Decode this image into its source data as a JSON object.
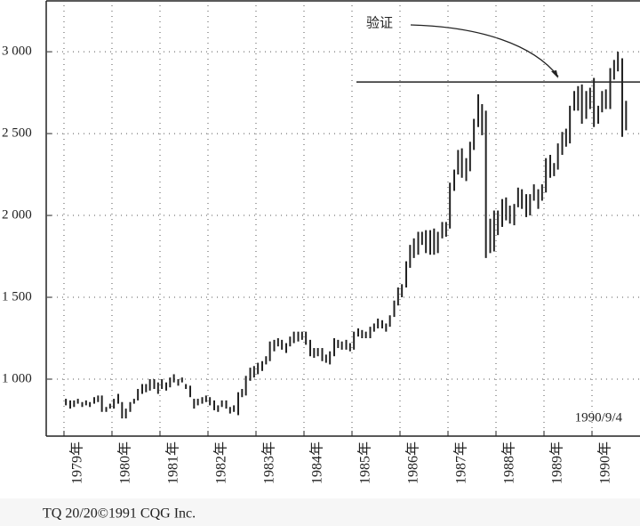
{
  "chart_data": {
    "type": "range-bar",
    "annotation": "验证",
    "date_label": "1990/9/4",
    "source": "TQ 20/20©1991 CQG Inc.",
    "reference_line": 2815,
    "color": "#222222",
    "grid": true,
    "xlim": [
      1978.63,
      1991.0
    ],
    "ylim": [
      652,
      3316
    ],
    "xticks": [
      {
        "value": 1979,
        "label": "1979年"
      },
      {
        "value": 1980,
        "label": "1980年"
      },
      {
        "value": 1981,
        "label": "1981年"
      },
      {
        "value": 1982,
        "label": "1982年"
      },
      {
        "value": 1983,
        "label": "1983年"
      },
      {
        "value": 1984,
        "label": "1984年"
      },
      {
        "value": 1985,
        "label": "1985年"
      },
      {
        "value": 1986,
        "label": "1986年"
      },
      {
        "value": 1987,
        "label": "1987年"
      },
      {
        "value": 1988,
        "label": "1988年"
      },
      {
        "value": 1989,
        "label": "1989年"
      },
      {
        "value": 1990,
        "label": "1990年"
      }
    ],
    "yticks": [
      {
        "value": 1000,
        "label": "1 000"
      },
      {
        "value": 1500,
        "label": "1 500"
      },
      {
        "value": 2000,
        "label": "2 000"
      },
      {
        "value": 2500,
        "label": "2 500"
      },
      {
        "value": 3000,
        "label": "3 000"
      }
    ],
    "x": [
      1979.04,
      1979.13,
      1979.21,
      1979.29,
      1979.38,
      1979.46,
      1979.54,
      1979.63,
      1979.71,
      1979.79,
      1979.88,
      1979.96,
      1980.04,
      1980.13,
      1980.21,
      1980.29,
      1980.38,
      1980.46,
      1980.54,
      1980.63,
      1980.71,
      1980.79,
      1980.88,
      1980.96,
      1981.04,
      1981.13,
      1981.21,
      1981.29,
      1981.38,
      1981.46,
      1981.54,
      1981.63,
      1981.71,
      1981.79,
      1981.88,
      1981.96,
      1982.04,
      1982.13,
      1982.21,
      1982.29,
      1982.38,
      1982.46,
      1982.54,
      1982.63,
      1982.71,
      1982.79,
      1982.88,
      1982.96,
      1983.04,
      1983.13,
      1983.21,
      1983.29,
      1983.38,
      1983.46,
      1983.54,
      1983.63,
      1983.71,
      1983.79,
      1983.88,
      1983.96,
      1984.04,
      1984.13,
      1984.21,
      1984.29,
      1984.38,
      1984.46,
      1984.54,
      1984.63,
      1984.71,
      1984.79,
      1984.88,
      1984.96,
      1985.04,
      1985.13,
      1985.21,
      1985.29,
      1985.38,
      1985.46,
      1985.54,
      1985.63,
      1985.71,
      1985.79,
      1985.88,
      1985.96,
      1986.04,
      1986.13,
      1986.21,
      1986.29,
      1986.38,
      1986.46,
      1986.54,
      1986.63,
      1986.71,
      1986.79,
      1986.88,
      1986.96,
      1987.04,
      1987.13,
      1987.21,
      1987.29,
      1987.38,
      1987.46,
      1987.54,
      1987.63,
      1987.71,
      1987.79,
      1987.88,
      1987.96,
      1988.04,
      1988.13,
      1988.21,
      1988.29,
      1988.38,
      1988.46,
      1988.54,
      1988.63,
      1988.71,
      1988.79,
      1988.88,
      1988.96,
      1989.04,
      1989.13,
      1989.21,
      1989.29,
      1989.38,
      1989.46,
      1989.54,
      1989.63,
      1989.71,
      1989.79,
      1989.88,
      1989.96,
      1990.04,
      1990.13,
      1990.21,
      1990.29,
      1990.38,
      1990.46,
      1990.54,
      1990.63,
      1990.71
    ],
    "high": [
      880,
      870,
      870,
      880,
      860,
      870,
      860,
      890,
      900,
      900,
      830,
      850,
      880,
      910,
      860,
      820,
      860,
      880,
      940,
      970,
      970,
      1000,
      1000,
      980,
      1000,
      980,
      1010,
      1030,
      1000,
      1010,
      970,
      960,
      880,
      880,
      890,
      900,
      890,
      870,
      840,
      870,
      870,
      830,
      840,
      920,
      940,
      1020,
      1070,
      1080,
      1100,
      1110,
      1140,
      1230,
      1240,
      1250,
      1240,
      1220,
      1260,
      1290,
      1290,
      1290,
      1290,
      1240,
      1190,
      1190,
      1190,
      1150,
      1170,
      1250,
      1240,
      1230,
      1240,
      1220,
      1290,
      1310,
      1300,
      1290,
      1320,
      1340,
      1370,
      1360,
      1340,
      1390,
      1480,
      1560,
      1580,
      1720,
      1820,
      1860,
      1900,
      1900,
      1910,
      1910,
      1920,
      1900,
      1960,
      1960,
      2200,
      2280,
      2400,
      2410,
      2350,
      2450,
      2590,
      2740,
      2680,
      2640,
      1980,
      2030,
      2030,
      2100,
      2110,
      2060,
      2070,
      2170,
      2160,
      2130,
      2130,
      2190,
      2160,
      2190,
      2350,
      2370,
      2320,
      2440,
      2510,
      2530,
      2670,
      2760,
      2790,
      2800,
      2760,
      2780,
      2840,
      2670,
      2760,
      2770,
      2900,
      2950,
      3000,
      2960,
      2700
    ],
    "low": [
      840,
      820,
      830,
      850,
      830,
      840,
      830,
      850,
      860,
      800,
      800,
      820,
      820,
      850,
      760,
      760,
      800,
      850,
      870,
      910,
      920,
      930,
      940,
      910,
      940,
      930,
      950,
      980,
      960,
      980,
      940,
      890,
      820,
      840,
      850,
      860,
      840,
      810,
      800,
      830,
      820,
      790,
      800,
      780,
      890,
      900,
      990,
      1010,
      1030,
      1050,
      1090,
      1110,
      1170,
      1200,
      1180,
      1160,
      1200,
      1220,
      1230,
      1240,
      1210,
      1140,
      1130,
      1140,
      1110,
      1100,
      1090,
      1140,
      1190,
      1180,
      1180,
      1170,
      1180,
      1260,
      1250,
      1250,
      1250,
      1290,
      1310,
      1310,
      1290,
      1320,
      1380,
      1450,
      1500,
      1560,
      1680,
      1740,
      1760,
      1820,
      1770,
      1760,
      1760,
      1770,
      1860,
      1870,
      1920,
      2150,
      2250,
      2230,
      2210,
      2270,
      2400,
      2540,
      2490,
      1740,
      1770,
      1780,
      1880,
      1930,
      1970,
      1950,
      1940,
      2050,
      2040,
      1990,
      2000,
      2090,
      2040,
      2090,
      2140,
      2230,
      2240,
      2280,
      2370,
      2420,
      2440,
      2640,
      2640,
      2560,
      2590,
      2650,
      2540,
      2560,
      2630,
      2650,
      2650,
      2830,
      2880,
      2480,
      2520
    ]
  }
}
